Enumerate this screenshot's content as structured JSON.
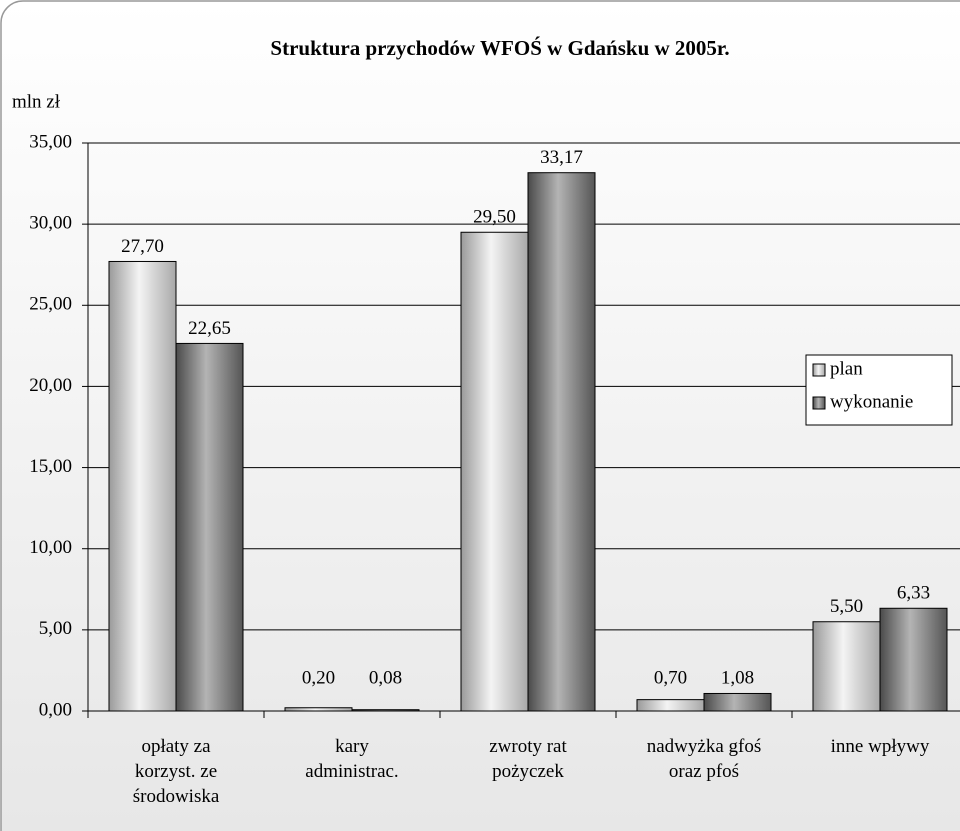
{
  "chart_data": {
    "type": "bar",
    "title": "Struktura przychodów WFOŚ w Gdańsku w 2005r.",
    "y_axis_label": "mln zł",
    "categories": [
      "opłaty za\nkorzyst. ze\nśrodowiska",
      "kary\nadministrac.",
      "zwroty rat\npożyczek",
      "nadwyżka gfoś\noraz pfoś",
      "inne wpływy"
    ],
    "series": [
      {
        "name": "plan",
        "color": "#d8d8d8",
        "values": [
          27.7,
          0.2,
          29.5,
          0.7,
          5.5
        ],
        "value_labels": [
          "27,70",
          "0,20",
          "29,50",
          "0,70",
          "5,50"
        ]
      },
      {
        "name": "wykonanie",
        "color": "#8c8c8c",
        "values": [
          22.65,
          0.08,
          33.17,
          1.08,
          6.33
        ],
        "value_labels": [
          "22,65",
          "0,08",
          "33,17",
          "1,08",
          "6,33"
        ]
      }
    ],
    "ylim": [
      0,
      35
    ],
    "yticks": [
      {
        "value": 0,
        "label": "0,00"
      },
      {
        "value": 5,
        "label": "5,00"
      },
      {
        "value": 10,
        "label": "10,00"
      },
      {
        "value": 15,
        "label": "15,00"
      },
      {
        "value": 20,
        "label": "20,00"
      },
      {
        "value": 25,
        "label": "25,00"
      },
      {
        "value": 30,
        "label": "30,00"
      },
      {
        "value": 35,
        "label": "35,00"
      }
    ],
    "grid": true,
    "legend": "right"
  }
}
